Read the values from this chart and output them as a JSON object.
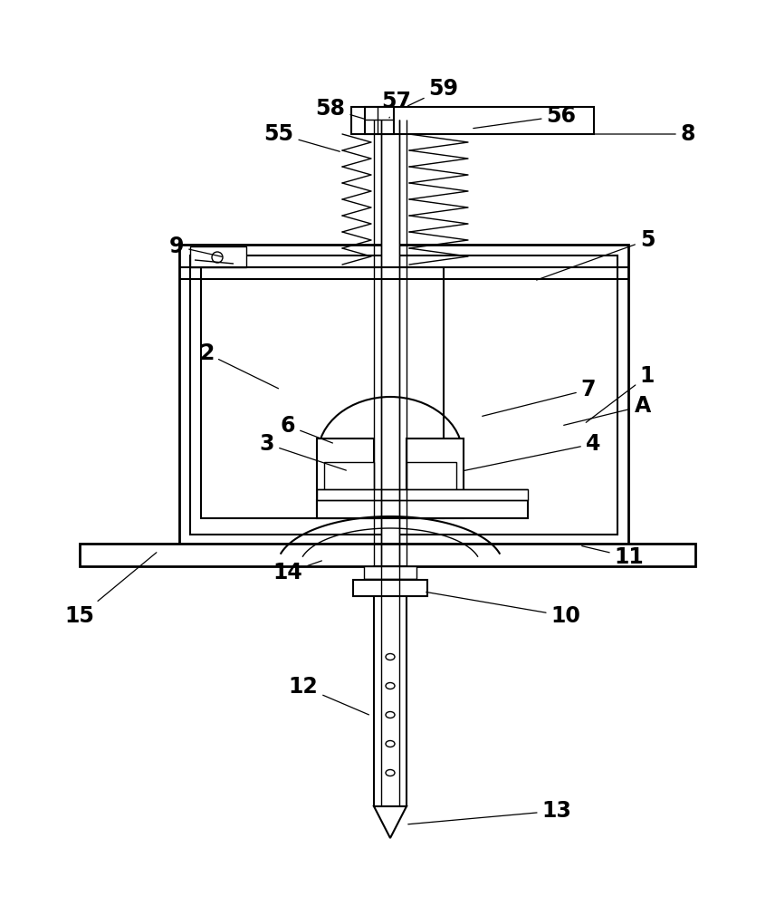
{
  "bg_color": "#ffffff",
  "lc": "#000000",
  "fig_w": 8.56,
  "fig_h": 10.0,
  "annotations": [
    [
      "1",
      715,
      415,
      645,
      468
    ],
    [
      "2",
      228,
      390,
      310,
      430
    ],
    [
      "3",
      295,
      490,
      385,
      520
    ],
    [
      "4",
      655,
      490,
      510,
      520
    ],
    [
      "5",
      715,
      265,
      590,
      310
    ],
    [
      "6",
      318,
      470,
      370,
      490
    ],
    [
      "7",
      650,
      430,
      530,
      460
    ],
    [
      "A",
      710,
      448,
      620,
      470
    ],
    [
      "8",
      760,
      148,
      645,
      148
    ],
    [
      "9",
      195,
      272,
      248,
      284
    ],
    [
      "10",
      625,
      680,
      468,
      653
    ],
    [
      "11",
      695,
      615,
      640,
      602
    ],
    [
      "12",
      335,
      758,
      410,
      790
    ],
    [
      "13",
      615,
      895,
      448,
      910
    ],
    [
      "14",
      318,
      632,
      358,
      618
    ],
    [
      "15",
      88,
      680,
      175,
      608
    ],
    [
      "55",
      308,
      148,
      378,
      168
    ],
    [
      "56",
      620,
      128,
      520,
      142
    ],
    [
      "57",
      438,
      112,
      430,
      130
    ],
    [
      "58",
      365,
      120,
      405,
      132
    ],
    [
      "59",
      490,
      98,
      448,
      118
    ]
  ]
}
